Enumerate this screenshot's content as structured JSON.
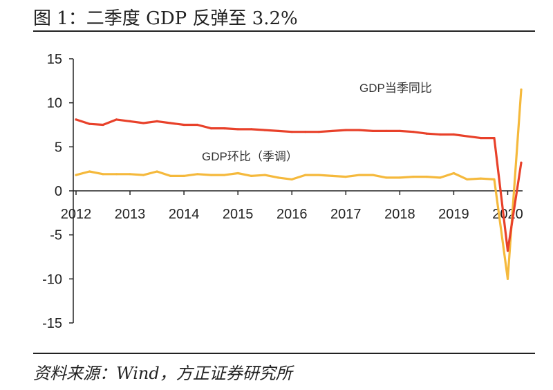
{
  "title": "图 1：二季度 GDP 反弹至 3.2%",
  "source": "资料来源：Wind，方正证券研究所",
  "chart_data": {
    "type": "line",
    "title": "图 1：二季度 GDP 反弹至 3.2%",
    "xlabel": "",
    "ylabel": "",
    "ylim": [
      -15,
      15
    ],
    "y_ticks": [
      "15",
      "10",
      "5",
      "0",
      "-5",
      "-10",
      "-15"
    ],
    "x_ticks": [
      "2012",
      "2013",
      "2014",
      "2015",
      "2016",
      "2017",
      "2018",
      "2019",
      "2020"
    ],
    "grid": false,
    "x": [
      "2012Q1",
      "2012Q2",
      "2012Q3",
      "2012Q4",
      "2013Q1",
      "2013Q2",
      "2013Q3",
      "2013Q4",
      "2014Q1",
      "2014Q2",
      "2014Q3",
      "2014Q4",
      "2015Q1",
      "2015Q2",
      "2015Q3",
      "2015Q4",
      "2016Q1",
      "2016Q2",
      "2016Q3",
      "2016Q4",
      "2017Q1",
      "2017Q2",
      "2017Q3",
      "2017Q4",
      "2018Q1",
      "2018Q2",
      "2018Q3",
      "2018Q4",
      "2019Q1",
      "2019Q2",
      "2019Q3",
      "2019Q4",
      "2020Q1",
      "2020Q2"
    ],
    "series": [
      {
        "name": "GDP当季同比",
        "color": "#e8412a",
        "values": [
          8.1,
          7.6,
          7.5,
          8.1,
          7.9,
          7.7,
          7.9,
          7.7,
          7.5,
          7.5,
          7.1,
          7.1,
          7.0,
          7.0,
          6.9,
          6.8,
          6.7,
          6.7,
          6.7,
          6.8,
          6.9,
          6.9,
          6.8,
          6.8,
          6.8,
          6.7,
          6.5,
          6.4,
          6.4,
          6.2,
          6.0,
          6.0,
          -6.8,
          3.2
        ]
      },
      {
        "name": "GDP环比（季调）",
        "color": "#f5b93c",
        "values": [
          1.8,
          2.2,
          1.9,
          1.9,
          1.9,
          1.8,
          2.2,
          1.7,
          1.7,
          1.9,
          1.8,
          1.8,
          2.0,
          1.7,
          1.8,
          1.5,
          1.3,
          1.8,
          1.8,
          1.7,
          1.6,
          1.8,
          1.8,
          1.5,
          1.5,
          1.6,
          1.6,
          1.5,
          2.0,
          1.3,
          1.4,
          1.3,
          -10.0,
          11.5
        ]
      }
    ]
  }
}
